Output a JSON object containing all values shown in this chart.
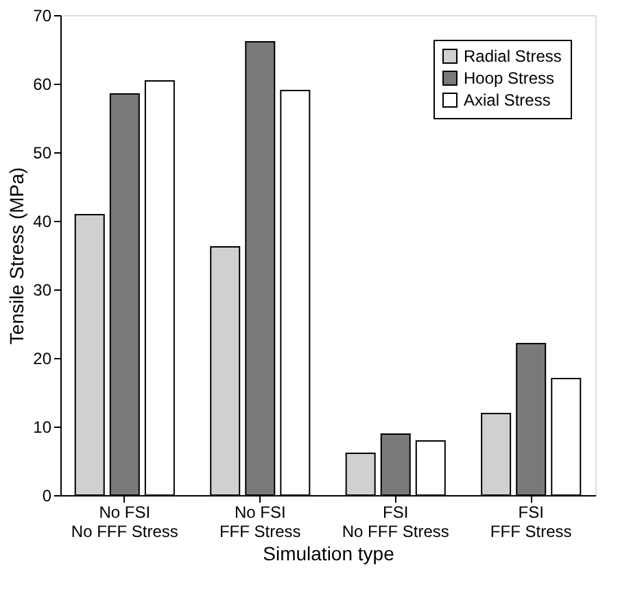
{
  "chart_data": {
    "type": "bar",
    "xlabel": "Simulation type",
    "ylabel": "Tensile Stress (MPa)",
    "categories": [
      "No FSI\nNo FFF Stress",
      "No FSI\nFFF Stress",
      "FSI\nNo FFF Stress",
      "FSI\nFFF Stress"
    ],
    "series": [
      {
        "name": "Radial Stress",
        "color": "#d0d0d0",
        "values": [
          40.9,
          36.2,
          6.1,
          11.9
        ]
      },
      {
        "name": "Hoop Stress",
        "color": "#7a7a7a",
        "values": [
          58.5,
          66.1,
          8.9,
          22.1
        ]
      },
      {
        "name": "Axial Stress",
        "color": "#ffffff",
        "values": [
          60.4,
          59.0,
          7.9,
          17.0
        ]
      }
    ],
    "ylim": [
      0,
      70
    ],
    "yticks": [
      0,
      10,
      20,
      30,
      40,
      50,
      60,
      70
    ],
    "grid": false,
    "legend": "top right"
  }
}
